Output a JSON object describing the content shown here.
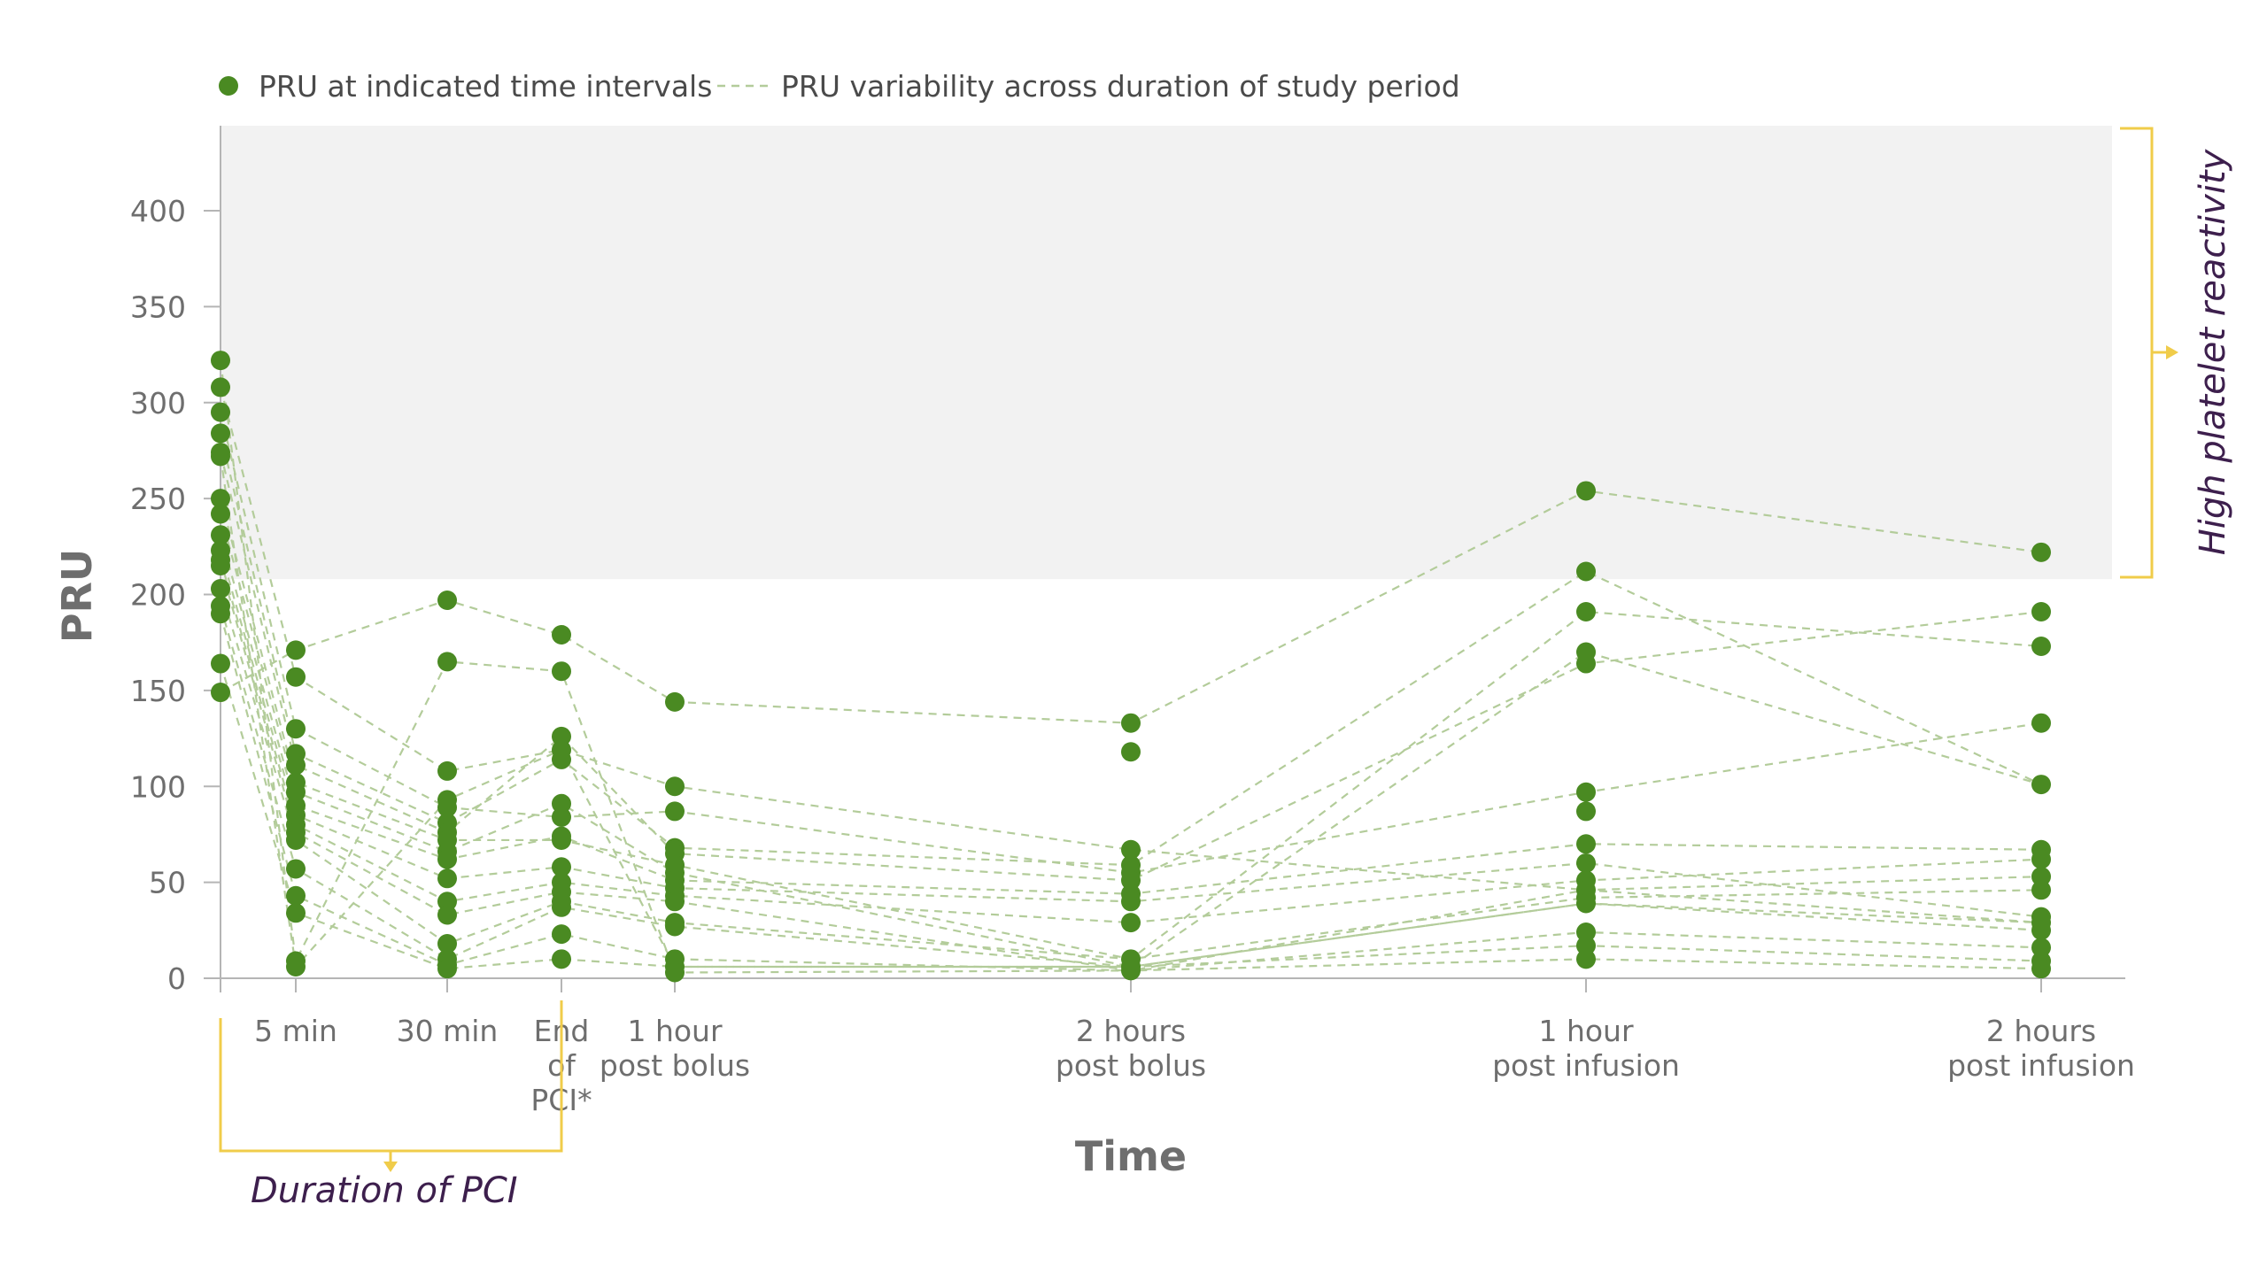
{
  "chart_data": {
    "type": "scatter",
    "title": "",
    "xlabel": "Time",
    "ylabel": "PRU",
    "ylim": [
      0,
      440
    ],
    "yticks": [
      0,
      50,
      100,
      150,
      200,
      250,
      300,
      350,
      400
    ],
    "yticks_labels": [
      "0",
      "50",
      "100",
      "150",
      "200",
      "250",
      "300",
      "350",
      "400"
    ],
    "grid": false,
    "legend_position": "top-left",
    "legend": [
      {
        "label": "PRU at indicated time intervals",
        "marker": "dot",
        "color": "#4a8a22"
      },
      {
        "label": "PRU variability across duration of study period",
        "marker": "dashed-line",
        "color": "#b3cc9a"
      }
    ],
    "time_points": [
      {
        "label_lines": [
          ""
        ],
        "x": 0
      },
      {
        "label_lines": [
          "5 min"
        ],
        "x": 5
      },
      {
        "label_lines": [
          "30 min"
        ],
        "x": 30
      },
      {
        "label_lines": [
          "End",
          "of",
          "PCI*"
        ],
        "x": 45
      },
      {
        "label_lines": [
          "1 hour",
          "post bolus"
        ],
        "x": 60
      },
      {
        "label_lines": [
          "2 hours",
          "post bolus"
        ],
        "x": 120
      },
      {
        "label_lines": [
          "1 hour",
          "post infusion"
        ],
        "x": 180
      },
      {
        "label_lines": [
          "2 hours",
          "post infusion"
        ],
        "x": 240
      }
    ],
    "points": [
      {
        "x": 0,
        "values": [
          322,
          308,
          295,
          284,
          274,
          272,
          250,
          242,
          231,
          223,
          218,
          215,
          203,
          194,
          190,
          164,
          149
        ]
      },
      {
        "x": 5,
        "values": [
          171,
          157,
          130,
          117,
          111,
          102,
          97,
          90,
          85,
          80,
          76,
          72,
          57,
          43,
          34,
          9,
          6
        ]
      },
      {
        "x": 30,
        "values": [
          197,
          165,
          108,
          93,
          89,
          81,
          76,
          72,
          66,
          62,
          52,
          40,
          33,
          18,
          10,
          7,
          5
        ]
      },
      {
        "x": 45,
        "values": [
          179,
          160,
          126,
          119,
          114,
          91,
          84,
          74,
          72,
          58,
          50,
          45,
          40,
          37,
          23,
          10
        ]
      },
      {
        "x": 60,
        "values": [
          144,
          100,
          87,
          68,
          65,
          59,
          55,
          51,
          47,
          43,
          40,
          29,
          27,
          10,
          6,
          3
        ]
      },
      {
        "x": 120,
        "values": [
          133,
          118,
          67,
          59,
          55,
          51,
          44,
          40,
          29,
          10,
          6,
          4
        ]
      },
      {
        "x": 180,
        "values": [
          254,
          212,
          191,
          170,
          164,
          97,
          87,
          70,
          60,
          51,
          46,
          42,
          39,
          24,
          17,
          10
        ]
      },
      {
        "x": 240,
        "values": [
          222,
          191,
          173,
          133,
          101,
          67,
          62,
          53,
          46,
          32,
          29,
          25,
          16,
          9,
          5
        ]
      }
    ],
    "traces": [
      [
        308,
        157,
        108,
        119,
        100,
        67,
        46,
        29
      ],
      [
        295,
        130,
        89,
        84,
        87,
        55,
        97,
        133
      ],
      [
        284,
        117,
        81,
        114,
        68,
        59,
        212,
        101
      ],
      [
        274,
        111,
        76,
        126,
        65,
        51,
        164,
        191
      ],
      [
        250,
        102,
        72,
        72,
        59,
        10,
        191,
        173
      ],
      [
        242,
        97,
        66,
        91,
        55,
        6,
        170,
        101
      ],
      [
        231,
        90,
        62,
        74,
        51,
        44,
        70,
        67
      ],
      [
        223,
        85,
        52,
        58,
        47,
        40,
        60,
        32
      ],
      [
        218,
        80,
        40,
        50,
        43,
        29,
        51,
        62
      ],
      [
        215,
        76,
        33,
        45,
        40,
        4,
        46,
        53
      ],
      [
        203,
        72,
        18,
        40,
        29,
        10,
        42,
        46
      ],
      [
        194,
        57,
        10,
        37,
        27,
        6,
        39,
        25
      ],
      [
        190,
        43,
        7,
        23,
        10,
        4,
        24,
        16
      ],
      [
        164,
        34,
        5,
        10,
        6,
        6,
        17,
        9
      ],
      [
        149,
        171,
        197,
        179,
        144,
        133,
        254,
        222
      ],
      [
        322,
        9,
        165,
        160,
        3,
        4,
        10,
        5
      ],
      [
        272,
        6,
        93,
        119,
        6,
        6,
        39,
        29
      ]
    ],
    "shaded_region": {
      "y_from": 208,
      "y_to": 440,
      "label": "High platelet reactivity"
    },
    "pci_bracket": {
      "x_from": 0,
      "x_to": 45,
      "label": "Duration of PCI"
    }
  },
  "colors": {
    "dot": "#4a8a22",
    "dashed": "#b3cc9a",
    "shade": "#f2f2f2",
    "axis": "#b5b5b5",
    "bracket": "#f0cc4a",
    "annotation": "#3d1f4d",
    "tick_text": "#6e6e6e"
  }
}
